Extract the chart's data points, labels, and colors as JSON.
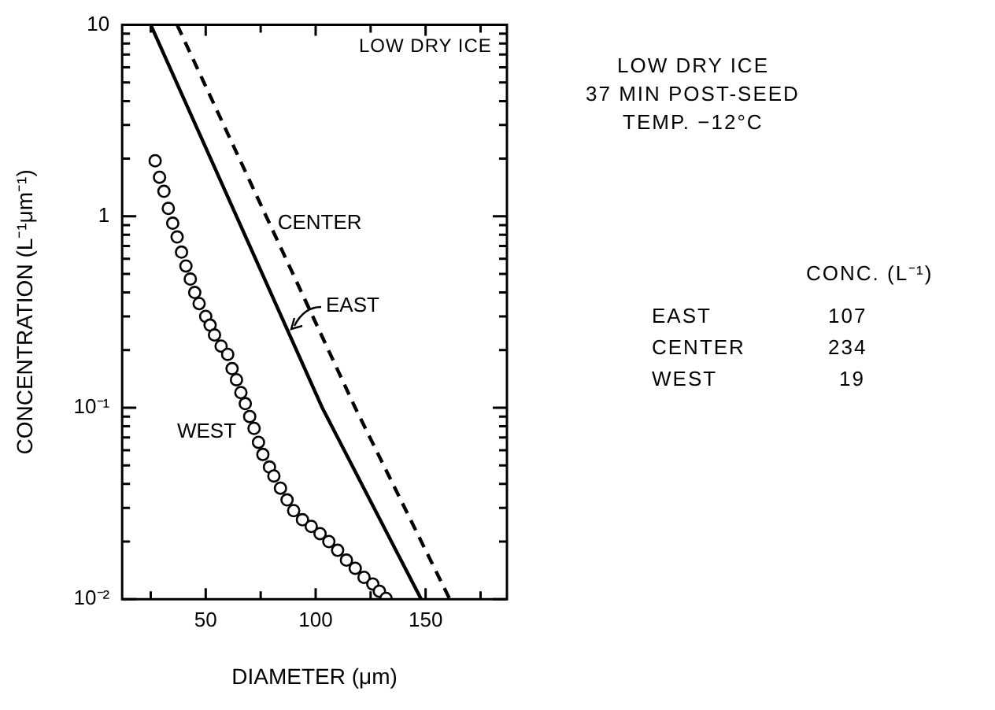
{
  "chart_data": {
    "type": "line",
    "xlabel": "DIAMETER (μm)",
    "ylabel": "CONCENTRATION (L⁻¹μm⁻¹)",
    "xlim": [
      12,
      187
    ],
    "ylim": [
      0.01,
      10
    ],
    "log": "y",
    "grid": false,
    "xticks": [
      {
        "value": 25,
        "label": null
      },
      50,
      {
        "value": 75,
        "label": null
      },
      100,
      {
        "value": 125,
        "label": null
      },
      150,
      {
        "value": 175,
        "label": null
      }
    ],
    "yticks": [
      {
        "value": 0.01,
        "label": "10⁻²"
      },
      {
        "value": 0.02,
        "label": null
      },
      {
        "value": 0.03,
        "label": null
      },
      {
        "value": 0.04,
        "label": null
      },
      {
        "value": 0.05,
        "label": null
      },
      {
        "value": 0.06,
        "label": null
      },
      {
        "value": 0.07,
        "label": null
      },
      {
        "value": 0.08,
        "label": null
      },
      {
        "value": 0.09,
        "label": null
      },
      {
        "value": 0.1,
        "label": "10⁻¹"
      },
      {
        "value": 0.2,
        "label": null
      },
      {
        "value": 0.3,
        "label": null
      },
      {
        "value": 0.4,
        "label": null
      },
      {
        "value": 0.5,
        "label": null
      },
      {
        "value": 0.6,
        "label": null
      },
      {
        "value": 0.7,
        "label": null
      },
      {
        "value": 0.8,
        "label": null
      },
      {
        "value": 0.9,
        "label": null
      },
      1,
      {
        "value": 2,
        "label": null
      },
      {
        "value": 3,
        "label": null
      },
      {
        "value": 4,
        "label": null
      },
      {
        "value": 5,
        "label": null
      },
      {
        "value": 6,
        "label": null
      },
      {
        "value": 7,
        "label": null
      },
      {
        "value": 8,
        "label": null
      },
      {
        "value": 9,
        "label": null
      },
      10
    ],
    "series": [
      {
        "name": "CENTER",
        "type": "line",
        "line_style": "dashed",
        "marker": "none",
        "color": "#000000",
        "x": [
          37,
          118,
          161
        ],
        "values": [
          10,
          0.1,
          0.01
        ]
      },
      {
        "name": "EAST",
        "type": "line",
        "line_style": "solid",
        "marker": "none",
        "color": "#000000",
        "x": [
          25,
          103,
          148
        ],
        "values": [
          10,
          0.1,
          0.01
        ]
      },
      {
        "name": "WEST",
        "type": "scatter",
        "marker": "circle",
        "color": "#000000",
        "x": [
          27,
          29,
          31,
          33,
          35,
          37,
          39,
          41,
          43,
          45,
          47,
          50,
          52,
          54,
          57,
          60,
          62,
          64,
          66,
          68,
          70,
          72,
          74,
          76,
          79,
          81,
          84,
          87,
          90,
          94,
          98,
          102,
          106,
          110,
          114,
          118,
          122,
          126,
          129,
          132
        ],
        "values": [
          1.95,
          1.6,
          1.35,
          1.1,
          0.92,
          0.78,
          0.65,
          0.55,
          0.47,
          0.4,
          0.35,
          0.3,
          0.27,
          0.24,
          0.21,
          0.19,
          0.16,
          0.14,
          0.12,
          0.105,
          0.09,
          0.078,
          0.066,
          0.057,
          0.049,
          0.044,
          0.038,
          0.033,
          0.029,
          0.026,
          0.024,
          0.022,
          0.02,
          0.018,
          0.016,
          0.0145,
          0.013,
          0.012,
          0.011,
          0.0101
        ]
      }
    ],
    "annotations": [
      "LOW DRY ICE",
      "LOW DRY ICE",
      "37 MIN POST-SEED",
      "TEMP. −12°C",
      "CONC. (L⁻¹)",
      "EAST",
      "107",
      "CENTER",
      "234",
      "WEST",
      "19"
    ]
  }
}
